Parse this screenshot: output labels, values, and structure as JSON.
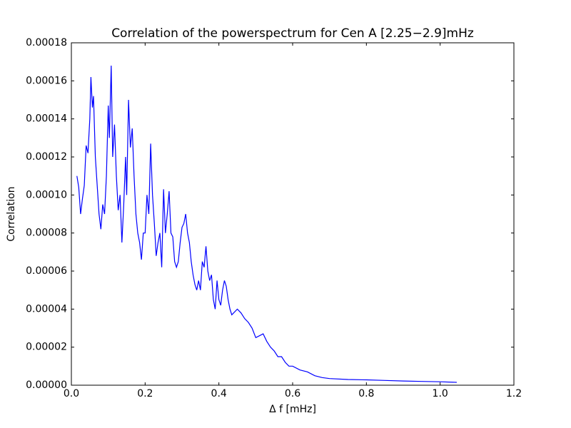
{
  "chart_data": {
    "type": "line",
    "title": "Correlation of the powerspectrum for Cen A [2.25−2.9]mHz",
    "xlabel": "Δ f [mHz]",
    "ylabel": "Correlation",
    "xlim": [
      0,
      1.2
    ],
    "ylim": [
      0,
      0.00018
    ],
    "xticks": [
      {
        "value": 0,
        "label": "0.0"
      },
      0.2,
      0.4,
      0.6,
      0.8,
      {
        "value": 1,
        "label": "1.0"
      },
      1.2
    ],
    "yticks": [
      {
        "value": 0,
        "label": "0.00000"
      },
      2e-05,
      4e-05,
      6e-05,
      8e-05,
      {
        "value": 0.0001,
        "label": "0.00010"
      },
      0.00012,
      0.00014,
      0.00016,
      0.00018
    ],
    "grid": false,
    "series": [
      {
        "color": "#0000ff",
        "x": [
          0.015,
          0.02,
          0.025,
          0.03,
          0.035,
          0.04,
          0.045,
          0.05,
          0.053,
          0.057,
          0.06,
          0.065,
          0.07,
          0.075,
          0.08,
          0.085,
          0.09,
          0.095,
          0.1,
          0.103,
          0.108,
          0.112,
          0.117,
          0.122,
          0.127,
          0.132,
          0.137,
          0.142,
          0.147,
          0.15,
          0.155,
          0.16,
          0.165,
          0.17,
          0.175,
          0.18,
          0.185,
          0.19,
          0.195,
          0.2,
          0.205,
          0.21,
          0.215,
          0.22,
          0.225,
          0.23,
          0.235,
          0.24,
          0.245,
          0.25,
          0.255,
          0.26,
          0.265,
          0.27,
          0.275,
          0.28,
          0.285,
          0.29,
          0.295,
          0.3,
          0.305,
          0.31,
          0.315,
          0.32,
          0.325,
          0.33,
          0.335,
          0.34,
          0.345,
          0.35,
          0.355,
          0.36,
          0.365,
          0.37,
          0.375,
          0.38,
          0.385,
          0.39,
          0.395,
          0.4,
          0.405,
          0.41,
          0.415,
          0.42,
          0.425,
          0.43,
          0.435,
          0.44,
          0.45,
          0.46,
          0.47,
          0.48,
          0.49,
          0.5,
          0.51,
          0.52,
          0.53,
          0.54,
          0.55,
          0.56,
          0.57,
          0.58,
          0.59,
          0.6,
          0.62,
          0.64,
          0.66,
          0.68,
          0.7,
          0.75,
          0.8,
          0.85,
          0.9,
          0.95,
          1.0,
          1.045
        ],
        "values": [
          0.00011,
          0.000104,
          9e-05,
          9.8e-05,
          0.000105,
          0.000126,
          0.000122,
          0.00014,
          0.000162,
          0.000146,
          0.000152,
          0.00012,
          0.000105,
          9e-05,
          8.2e-05,
          9.5e-05,
          9e-05,
          0.00011,
          0.000147,
          0.00013,
          0.000168,
          0.00012,
          0.000137,
          0.00011,
          9.2e-05,
          0.0001,
          7.5e-05,
          9.5e-05,
          0.00012,
          0.0001,
          0.00015,
          0.000125,
          0.000135,
          0.00011,
          9e-05,
          8e-05,
          7.5e-05,
          6.6e-05,
          8e-05,
          8e-05,
          0.0001,
          9e-05,
          0.000127,
          0.0001,
          8.5e-05,
          6.8e-05,
          7.5e-05,
          8e-05,
          6.2e-05,
          0.000103,
          8e-05,
          9e-05,
          0.000102,
          8e-05,
          7.8e-05,
          6.5e-05,
          6.2e-05,
          6.5e-05,
          7.5e-05,
          8.3e-05,
          8.5e-05,
          9e-05,
          8e-05,
          7.5e-05,
          6.5e-05,
          5.8e-05,
          5.3e-05,
          5e-05,
          5.5e-05,
          5e-05,
          6.5e-05,
          6.2e-05,
          7.3e-05,
          6e-05,
          5.5e-05,
          5.8e-05,
          4.5e-05,
          4e-05,
          5.5e-05,
          4.5e-05,
          4.2e-05,
          5e-05,
          5.5e-05,
          5.2e-05,
          4.5e-05,
          4e-05,
          3.7e-05,
          3.8e-05,
          4e-05,
          3.8e-05,
          3.5e-05,
          3.3e-05,
          3e-05,
          2.5e-05,
          2.6e-05,
          2.7e-05,
          2.3e-05,
          2e-05,
          1.8e-05,
          1.5e-05,
          1.5e-05,
          1.2e-05,
          1e-05,
          1e-05,
          8e-06,
          7e-06,
          5e-06,
          4e-06,
          3.5e-06,
          3e-06,
          2.8e-06,
          2.5e-06,
          2.2e-06,
          2e-06,
          1.8e-06,
          1.5e-06
        ]
      }
    ]
  }
}
